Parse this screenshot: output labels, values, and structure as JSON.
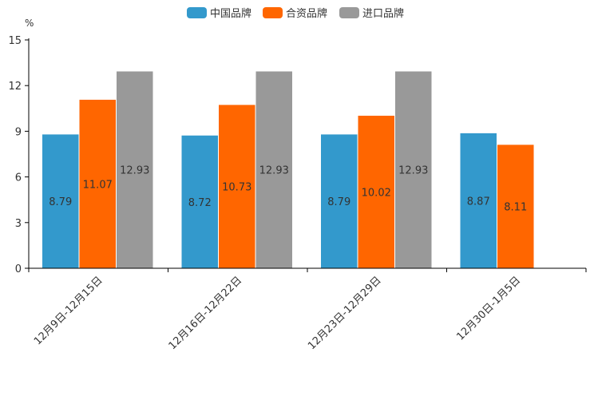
{
  "chart_data": {
    "type": "bar",
    "unit": "%",
    "categories": [
      "12月9日-12月15日",
      "12月16日-12月22日",
      "12月23日-12月29日",
      "12月30日-1月5日"
    ],
    "series": [
      {
        "name": "中国品牌",
        "color": "#3399cc",
        "values": [
          8.79,
          8.72,
          8.79,
          8.87
        ]
      },
      {
        "name": "合资品牌",
        "color": "#ff6600",
        "values": [
          11.07,
          10.73,
          10.02,
          8.11
        ]
      },
      {
        "name": "进口品牌",
        "color": "#999999",
        "values": [
          12.93,
          12.93,
          12.93,
          null
        ]
      }
    ],
    "y_ticks": [
      0,
      3,
      6,
      9,
      12,
      15
    ],
    "ylim": [
      0,
      15
    ],
    "legend_position": "top-center",
    "grid": false
  }
}
